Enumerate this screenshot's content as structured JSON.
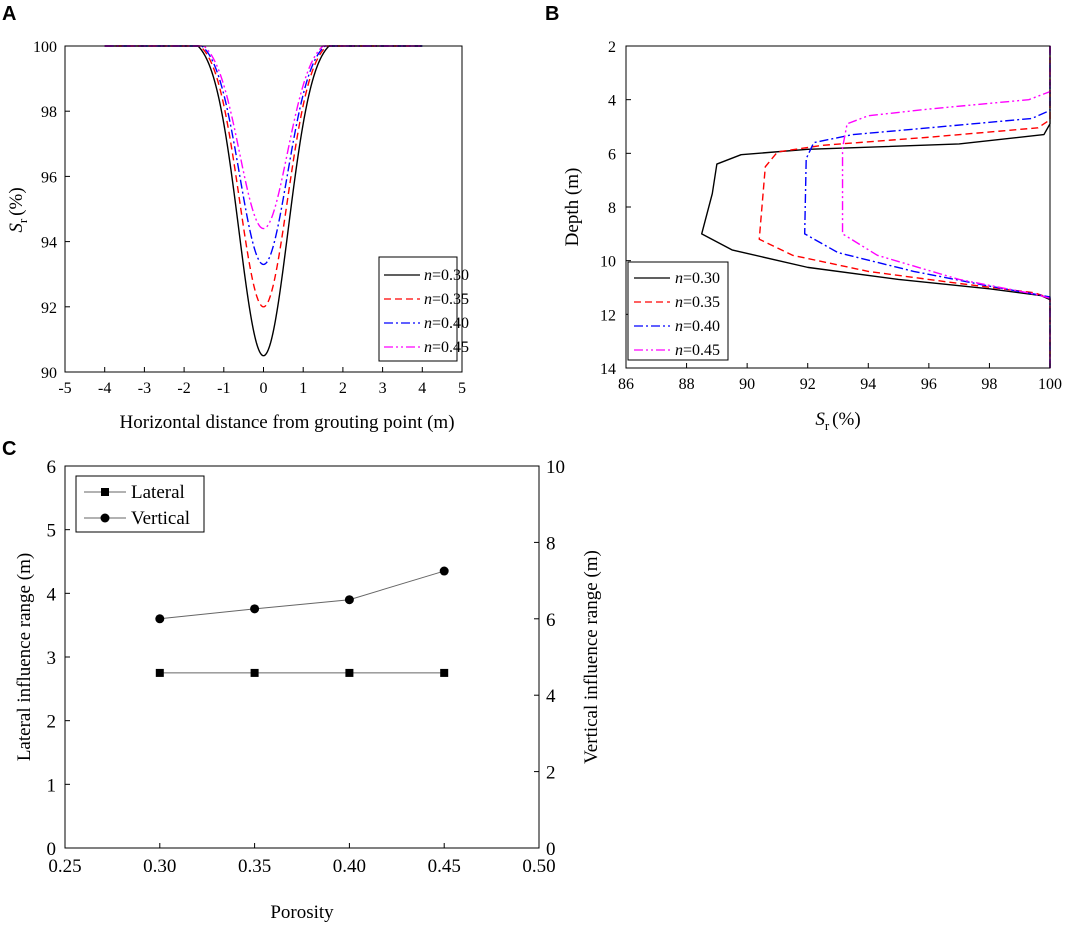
{
  "chart_data": [
    {
      "panel": "A",
      "type": "line",
      "xlabel": "Horizontal distance from grouting point (m)",
      "ylabel_main": "S",
      "ylabel_sub": "r",
      "ylabel_unit": "(%)",
      "xlim": [
        -5,
        5
      ],
      "ylim": [
        90,
        100
      ],
      "xticks": [
        "-5",
        "-4",
        "-3",
        "-2",
        "-1",
        "0",
        "1",
        "2",
        "3",
        "4",
        "5"
      ],
      "yticks": [
        "90",
        "92",
        "94",
        "96",
        "98",
        "100"
      ],
      "legend_position": "lower-right",
      "x_domain": [
        -4,
        4
      ],
      "series": [
        {
          "name": "n=0.30",
          "label_var": "n",
          "label_val": "=0.30",
          "color": "#000000",
          "dash": "",
          "min": 90.5,
          "flat_edge": 1.65,
          "sigma": 0.62
        },
        {
          "name": "n=0.35",
          "label_var": "n",
          "label_val": "=0.35",
          "color": "#ff0000",
          "dash": "7,4",
          "min": 92.0,
          "flat_edge": 1.6,
          "sigma": 0.6
        },
        {
          "name": "n=0.40",
          "label_var": "n",
          "label_val": "=0.40",
          "color": "#0000ff",
          "dash": "9,3,2,3",
          "min": 93.3,
          "flat_edge": 1.55,
          "sigma": 0.6
        },
        {
          "name": "n=0.45",
          "label_var": "n",
          "label_val": "=0.45",
          "color": "#ff00ff",
          "dash": "9,3,2,3,2,3",
          "min": 94.4,
          "flat_edge": 1.5,
          "sigma": 0.6
        }
      ]
    },
    {
      "panel": "B",
      "type": "line",
      "xlabel_main": "S",
      "xlabel_sub": "r",
      "xlabel_unit": "(%)",
      "ylabel": "Depth (m)",
      "xlim": [
        86,
        100
      ],
      "ylim": [
        2,
        14
      ],
      "y_inverted": true,
      "xticks": [
        "86",
        "88",
        "90",
        "92",
        "94",
        "96",
        "98",
        "100"
      ],
      "yticks": [
        "2",
        "4",
        "6",
        "8",
        "10",
        "12",
        "14"
      ],
      "legend_position": "lower-left",
      "series": [
        {
          "name": "n=0.30",
          "label_var": "n",
          "label_val": "=0.30",
          "color": "#000000",
          "dash": "",
          "points": [
            [
              100,
              2
            ],
            [
              100,
              4.9
            ],
            [
              99.8,
              5.3
            ],
            [
              97,
              5.65
            ],
            [
              92,
              5.85
            ],
            [
              89.8,
              6.05
            ],
            [
              89.0,
              6.4
            ],
            [
              88.85,
              7.5
            ],
            [
              88.5,
              9.0
            ],
            [
              89.5,
              9.6
            ],
            [
              92,
              10.25
            ],
            [
              95,
              10.7
            ],
            [
              98,
              11.05
            ],
            [
              99.7,
              11.3
            ],
            [
              100,
              11.45
            ],
            [
              100,
              14
            ]
          ]
        },
        {
          "name": "n=0.35",
          "label_var": "n",
          "label_val": "=0.35",
          "color": "#ff0000",
          "dash": "7,4",
          "points": [
            [
              100,
              2
            ],
            [
              100,
              4.75
            ],
            [
              99.6,
              5.05
            ],
            [
              96,
              5.4
            ],
            [
              92.5,
              5.7
            ],
            [
              91.0,
              5.95
            ],
            [
              90.6,
              6.5
            ],
            [
              90.4,
              9.2
            ],
            [
              91.5,
              9.8
            ],
            [
              94,
              10.4
            ],
            [
              97,
              10.85
            ],
            [
              99.5,
              11.2
            ],
            [
              100,
              11.4
            ],
            [
              100,
              14
            ]
          ]
        },
        {
          "name": "n=0.40",
          "label_var": "n",
          "label_val": "=0.40",
          "color": "#0000ff",
          "dash": "9,3,2,3",
          "points": [
            [
              100,
              2
            ],
            [
              100,
              4.4
            ],
            [
              99.4,
              4.7
            ],
            [
              96,
              5.05
            ],
            [
              93.5,
              5.3
            ],
            [
              92.2,
              5.6
            ],
            [
              91.95,
              6.2
            ],
            [
              91.9,
              9.0
            ],
            [
              93,
              9.7
            ],
            [
              95.5,
              10.4
            ],
            [
              98,
              10.95
            ],
            [
              100,
              11.35
            ],
            [
              100,
              14
            ]
          ]
        },
        {
          "name": "n=0.45",
          "label_var": "n",
          "label_val": "=0.45",
          "color": "#ff00ff",
          "dash": "9,3,2,3,2,3",
          "points": [
            [
              100,
              2
            ],
            [
              100,
              3.7
            ],
            [
              99.3,
              4.0
            ],
            [
              96,
              4.35
            ],
            [
              94,
              4.6
            ],
            [
              93.3,
              4.9
            ],
            [
              93.15,
              5.8
            ],
            [
              93.15,
              9.0
            ],
            [
              94.3,
              9.8
            ],
            [
              97,
              10.7
            ],
            [
              99.5,
              11.25
            ],
            [
              100,
              11.4
            ],
            [
              100,
              14
            ]
          ]
        }
      ]
    },
    {
      "panel": "C",
      "type": "line",
      "xlabel": "Porosity",
      "ylabel_left": "Lateral influence range (m)",
      "ylabel_right": "Vertical influence range (m)",
      "xlim": [
        0.25,
        0.5
      ],
      "ylim_left": [
        0,
        6
      ],
      "ylim_right": [
        0,
        10
      ],
      "xticks": [
        "0.25",
        "0.30",
        "0.35",
        "0.40",
        "0.45",
        "0.50"
      ],
      "yticks_left": [
        "0",
        "1",
        "2",
        "3",
        "4",
        "5",
        "6"
      ],
      "yticks_right": [
        "0",
        "2",
        "4",
        "6",
        "8",
        "10"
      ],
      "legend_position": "top-left",
      "series": [
        {
          "name": "Lateral",
          "axis": "left",
          "marker": "square",
          "x": [
            0.3,
            0.35,
            0.4,
            0.45
          ],
          "y": [
            2.75,
            2.75,
            2.75,
            2.75
          ]
        },
        {
          "name": "Vertical",
          "axis": "right",
          "marker": "circle",
          "x": [
            0.3,
            0.35,
            0.4,
            0.45
          ],
          "y": [
            6.0,
            6.26,
            6.5,
            7.25
          ]
        }
      ]
    }
  ],
  "panel_labels": [
    "A",
    "B",
    "C"
  ]
}
